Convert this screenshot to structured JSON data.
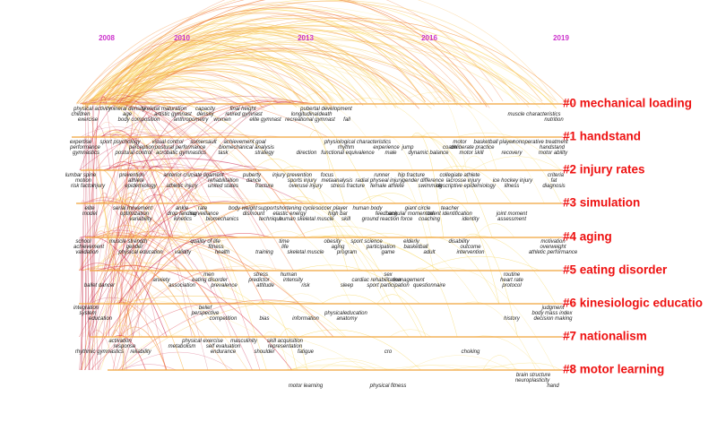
{
  "years": [
    "2008",
    "2010",
    "2013",
    "2016",
    "2019"
  ],
  "clusters": [
    {
      "label": "#0 mechanical loading"
    },
    {
      "label": "#1 handstand"
    },
    {
      "label": "#2 injury rates"
    },
    {
      "label": "#3 simulation"
    },
    {
      "label": "#4 aging"
    },
    {
      "label": "#5 eating disorder"
    },
    {
      "label": "#6 kinesiologic educatio"
    },
    {
      "label": "#7 nationalism"
    },
    {
      "label": "#8 motor learning"
    }
  ],
  "terms": [
    "physical activity",
    "mineral density",
    "skeletal maturation",
    "capacity",
    "final height",
    "pubertal development",
    "children",
    "age",
    "artistic gymnast",
    "density",
    "retired gymnast",
    "longitudinal",
    "death",
    "exercise",
    "body composition",
    "anthropometry",
    "women",
    "elite gymnast",
    "recreational gymnast",
    "fall",
    "muscle characteristics",
    "nutrition",
    "expertise",
    "sport psychology",
    "visual control",
    "somersault",
    "achievement goal",
    "physiological characteristics",
    "motor",
    "basketball player",
    "nonoperative treatment",
    "performance",
    "perception",
    "postural performance",
    "biomechanical analysis",
    "rhythm",
    "experience",
    "jump",
    "coach",
    "deliberate practice",
    "handstand",
    "gymnastics",
    "postural control",
    "acrobatic gymnastics",
    "task",
    "strategy",
    "direction",
    "functional equivalence",
    "male",
    "dynamic balance",
    "motor skill",
    "recovery",
    "motor ability",
    "lumbar spine",
    "prevention",
    "anterior cruciate ligament",
    "puberty",
    "injury prevention",
    "focus",
    "runner",
    "hip fracture",
    "collegiate athlete",
    "criteria",
    "motion",
    "athlete",
    "rehabilitation",
    "dance",
    "sports injury",
    "metaanalysis",
    "radial physeal injury",
    "gender difference",
    "lacrosse injury",
    "ice hockey injury",
    "fat",
    "injury",
    "risk factor",
    "epidemiology",
    "athletic injury",
    "united states",
    "fracture",
    "overuse injury",
    "stress fracture",
    "female athlete",
    "swimming",
    "descriptive epidemiology",
    "illness",
    "diagnosis",
    "elite",
    "serial movement",
    "ankle",
    "rate",
    "body weight",
    "support",
    "shortening cycle",
    "soccer player",
    "human body",
    "giant circle",
    "teacher",
    "model",
    "optimization",
    "drop landing",
    "surveillance",
    "dismount",
    "elastic energy",
    "high bar",
    "feedback",
    "angular momentum",
    "talent identification",
    "joint moment",
    "variability",
    "kinetics",
    "biomechanics",
    "technique",
    "human skeletal muscle",
    "skill",
    "ground reaction force",
    "coaching",
    "identity",
    "assessment",
    "school",
    "muscle strength",
    "quality of life",
    "time",
    "obesity",
    "sport science",
    "elderly",
    "disability",
    "motivation",
    "achievement",
    "gender",
    "fitness",
    "life",
    "aging",
    "participation",
    "basketball",
    "outcome",
    "overweight",
    "validation",
    "physical education",
    "validity",
    "health",
    "training",
    "skeletal muscle",
    "program",
    "game",
    "adult",
    "intervention",
    "athletic performance",
    "men",
    "stress",
    "human",
    "sex",
    "routine",
    "anxiety",
    "eating disorder",
    "predictor",
    "intensity",
    "cardiac rehabilitation",
    "management",
    "heart rate",
    "ballet dancer",
    "association",
    "prevalence",
    "attitude",
    "risk",
    "sleep",
    "sport participation",
    "questionnaire",
    "protocol",
    "integration",
    "belief",
    "judgment",
    "system",
    "perspective",
    "physicaleducation",
    "body mass index",
    "education",
    "competition",
    "bias",
    "information",
    "anatomy",
    "history",
    "decision making",
    "activation",
    "physical exercise",
    "masculinity",
    "skill acquisition",
    "response",
    "metabolism",
    "self evaluation",
    "representation",
    "rhythmic gymnastics",
    "reliability",
    "endurance",
    "shoulder",
    "fatigue",
    "cro",
    "choking",
    "brain structure",
    "neuroplasticity",
    "hand",
    "motor learning",
    "physical fitness"
  ]
}
